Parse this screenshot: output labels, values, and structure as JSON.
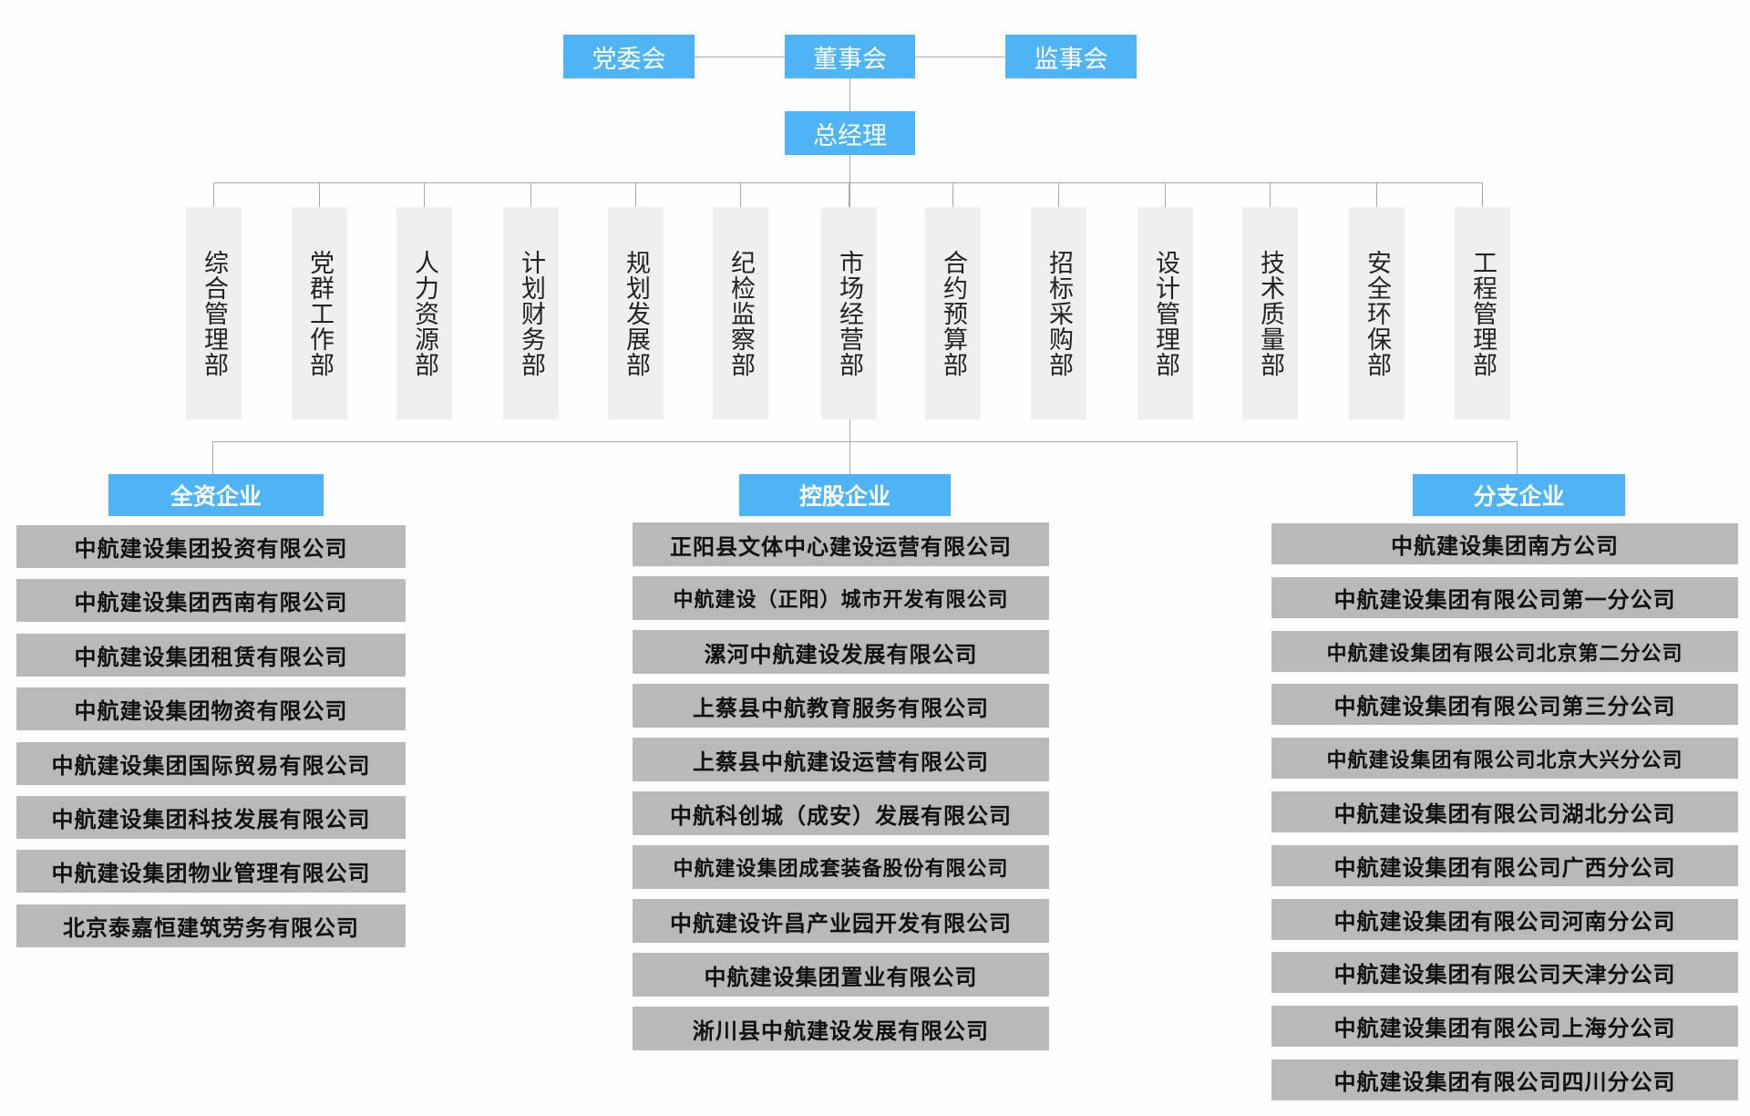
{
  "colors": {
    "accent": "#4fb4f6",
    "company_box": "#b9b9b9",
    "dept_box": "#efefef",
    "connector": "#a9a9a9"
  },
  "top": {
    "party_committee": "党委会",
    "board": "董事会",
    "supervisory_board": "监事会",
    "general_manager": "总经理"
  },
  "departments": [
    "综合管理部",
    "党群工作部",
    "人力资源部",
    "计划财务部",
    "规划发展部",
    "纪检监察部",
    "市场经营部",
    "合约预算部",
    "招标采购部",
    "设计管理部",
    "技术质量部",
    "安全环保部",
    "工程管理部"
  ],
  "groups": [
    {
      "title": "全资企业",
      "companies": [
        "中航建设集团投资有限公司",
        "中航建设集团西南有限公司",
        "中航建设集团租赁有限公司",
        "中航建设集团物资有限公司",
        "中航建设集团国际贸易有限公司",
        "中航建设集团科技发展有限公司",
        "中航建设集团物业管理有限公司",
        "北京泰嘉恒建筑劳务有限公司"
      ]
    },
    {
      "title": "控股企业",
      "companies": [
        "正阳县文体中心建设运营有限公司",
        "中航建设（正阳）城市开发有限公司",
        "漯河中航建设发展有限公司",
        "上蔡县中航教育服务有限公司",
        "上蔡县中航建设运营有限公司",
        "中航科创城（成安）发展有限公司",
        "中航建设集团成套装备股份有限公司",
        "中航建设许昌产业园开发有限公司",
        "中航建设集团置业有限公司",
        "淅川县中航建设发展有限公司"
      ]
    },
    {
      "title": "分支企业",
      "companies": [
        "中航建设集团南方公司",
        "中航建设集团有限公司第一分公司",
        "中航建设集团有限公司北京第二分公司",
        "中航建设集团有限公司第三分公司",
        "中航建设集团有限公司北京大兴分公司",
        "中航建设集团有限公司湖北分公司",
        "中航建设集团有限公司广西分公司",
        "中航建设集团有限公司河南分公司",
        "中航建设集团有限公司天津分公司",
        "中航建设集团有限公司上海分公司",
        "中航建设集团有限公司四川分公司"
      ]
    }
  ]
}
